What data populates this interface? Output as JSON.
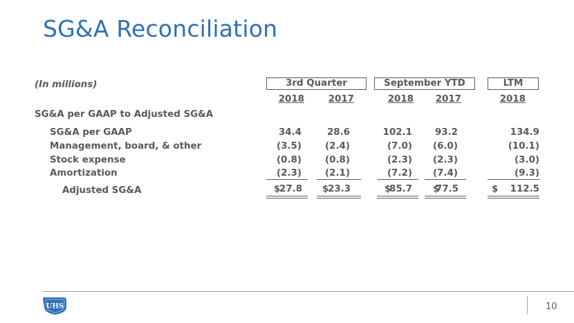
{
  "slide": {
    "title": "SG&A Reconciliation",
    "page_number": "10"
  },
  "logo": {
    "text": "UHS",
    "color": "#2f6fb7"
  },
  "table": {
    "units_label": "(In millions)",
    "groups": [
      "3rd Quarter",
      "September YTD",
      "LTM"
    ],
    "years": [
      "2018",
      "2017",
      "2018",
      "2017",
      "2018"
    ],
    "section_label": "SG&A per GAAP to Adjusted SG&A",
    "rows": [
      {
        "label": "SG&A per GAAP",
        "values": [
          "34.4",
          "28.6",
          "102.1",
          "93.2",
          "134.9"
        ]
      },
      {
        "label": "Management, board, & other",
        "values": [
          "(3.5)",
          "(2.4)",
          "(7.0)",
          "(6.0)",
          "(10.1)"
        ]
      },
      {
        "label": "Stock expense",
        "values": [
          "(0.8)",
          "(0.8)",
          "(2.3)",
          "(2.3)",
          "(3.0)"
        ]
      },
      {
        "label": "Amortization",
        "values": [
          "(2.3)",
          "(2.1)",
          "(7.2)",
          "(7.4)",
          "(9.3)"
        ]
      }
    ],
    "total": {
      "label": "Adjusted SG&A",
      "currency": "$",
      "values": [
        "27.8",
        "23.3",
        "85.7",
        "77.5",
        "112.5"
      ]
    }
  }
}
